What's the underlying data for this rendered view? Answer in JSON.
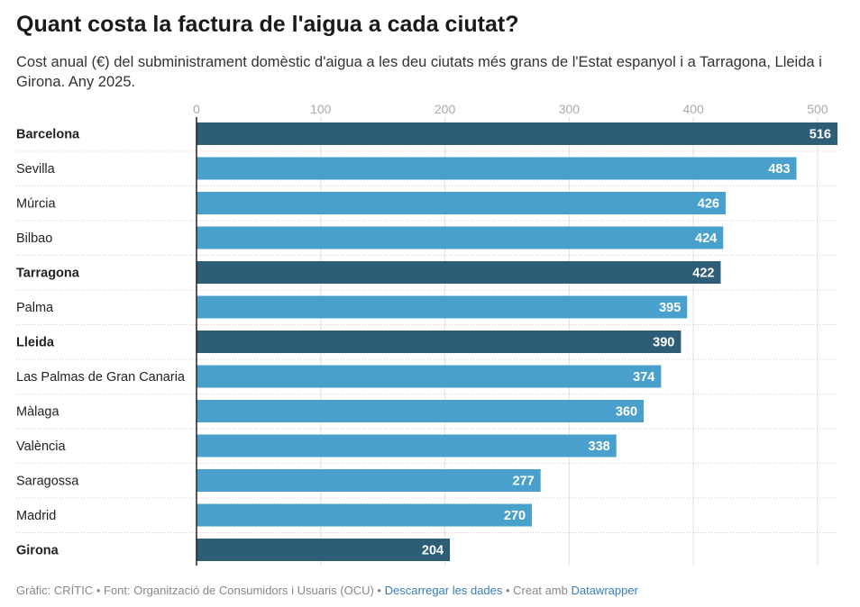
{
  "title": "Quant costa la factura de l'aigua a cada ciutat?",
  "subtitle": "Cost anual (€) del subministrament domèstic d'aigua a les deu ciutats més grans de l'Estat espanyol i a Tarragona, Lleida i Girona. Any 2025.",
  "colors": {
    "highlight": "#2e5e77",
    "default": "#4aa0cc",
    "gridline": "#e0e0e0",
    "axis": "#222222",
    "tick_text": "#aaaaaa",
    "separator": "#cccccc"
  },
  "chart_data": {
    "type": "bar",
    "orientation": "horizontal",
    "categories": [
      "Barcelona",
      "Sevilla",
      "Múrcia",
      "Bilbao",
      "Tarragona",
      "Palma",
      "Lleida",
      "Las Palmas de Gran Canaria",
      "Màlaga",
      "València",
      "Saragossa",
      "Madrid",
      "Girona"
    ],
    "values": [
      516,
      483,
      426,
      424,
      422,
      395,
      390,
      374,
      360,
      338,
      277,
      270,
      204
    ],
    "highlighted": [
      "Barcelona",
      "Tarragona",
      "Lleida",
      "Girona"
    ],
    "xticks": [
      0,
      100,
      200,
      300,
      400,
      500
    ],
    "xlim": [
      0,
      516
    ],
    "grid": true,
    "tick_position": "top"
  },
  "footer": {
    "prefix": "Gràfic: CRÍTIC • Font: Organització de Consumidors i Usuaris (OCU) • ",
    "download": "Descarregar les dades",
    "middle": " • Creat amb ",
    "tool": "Datawrapper"
  }
}
